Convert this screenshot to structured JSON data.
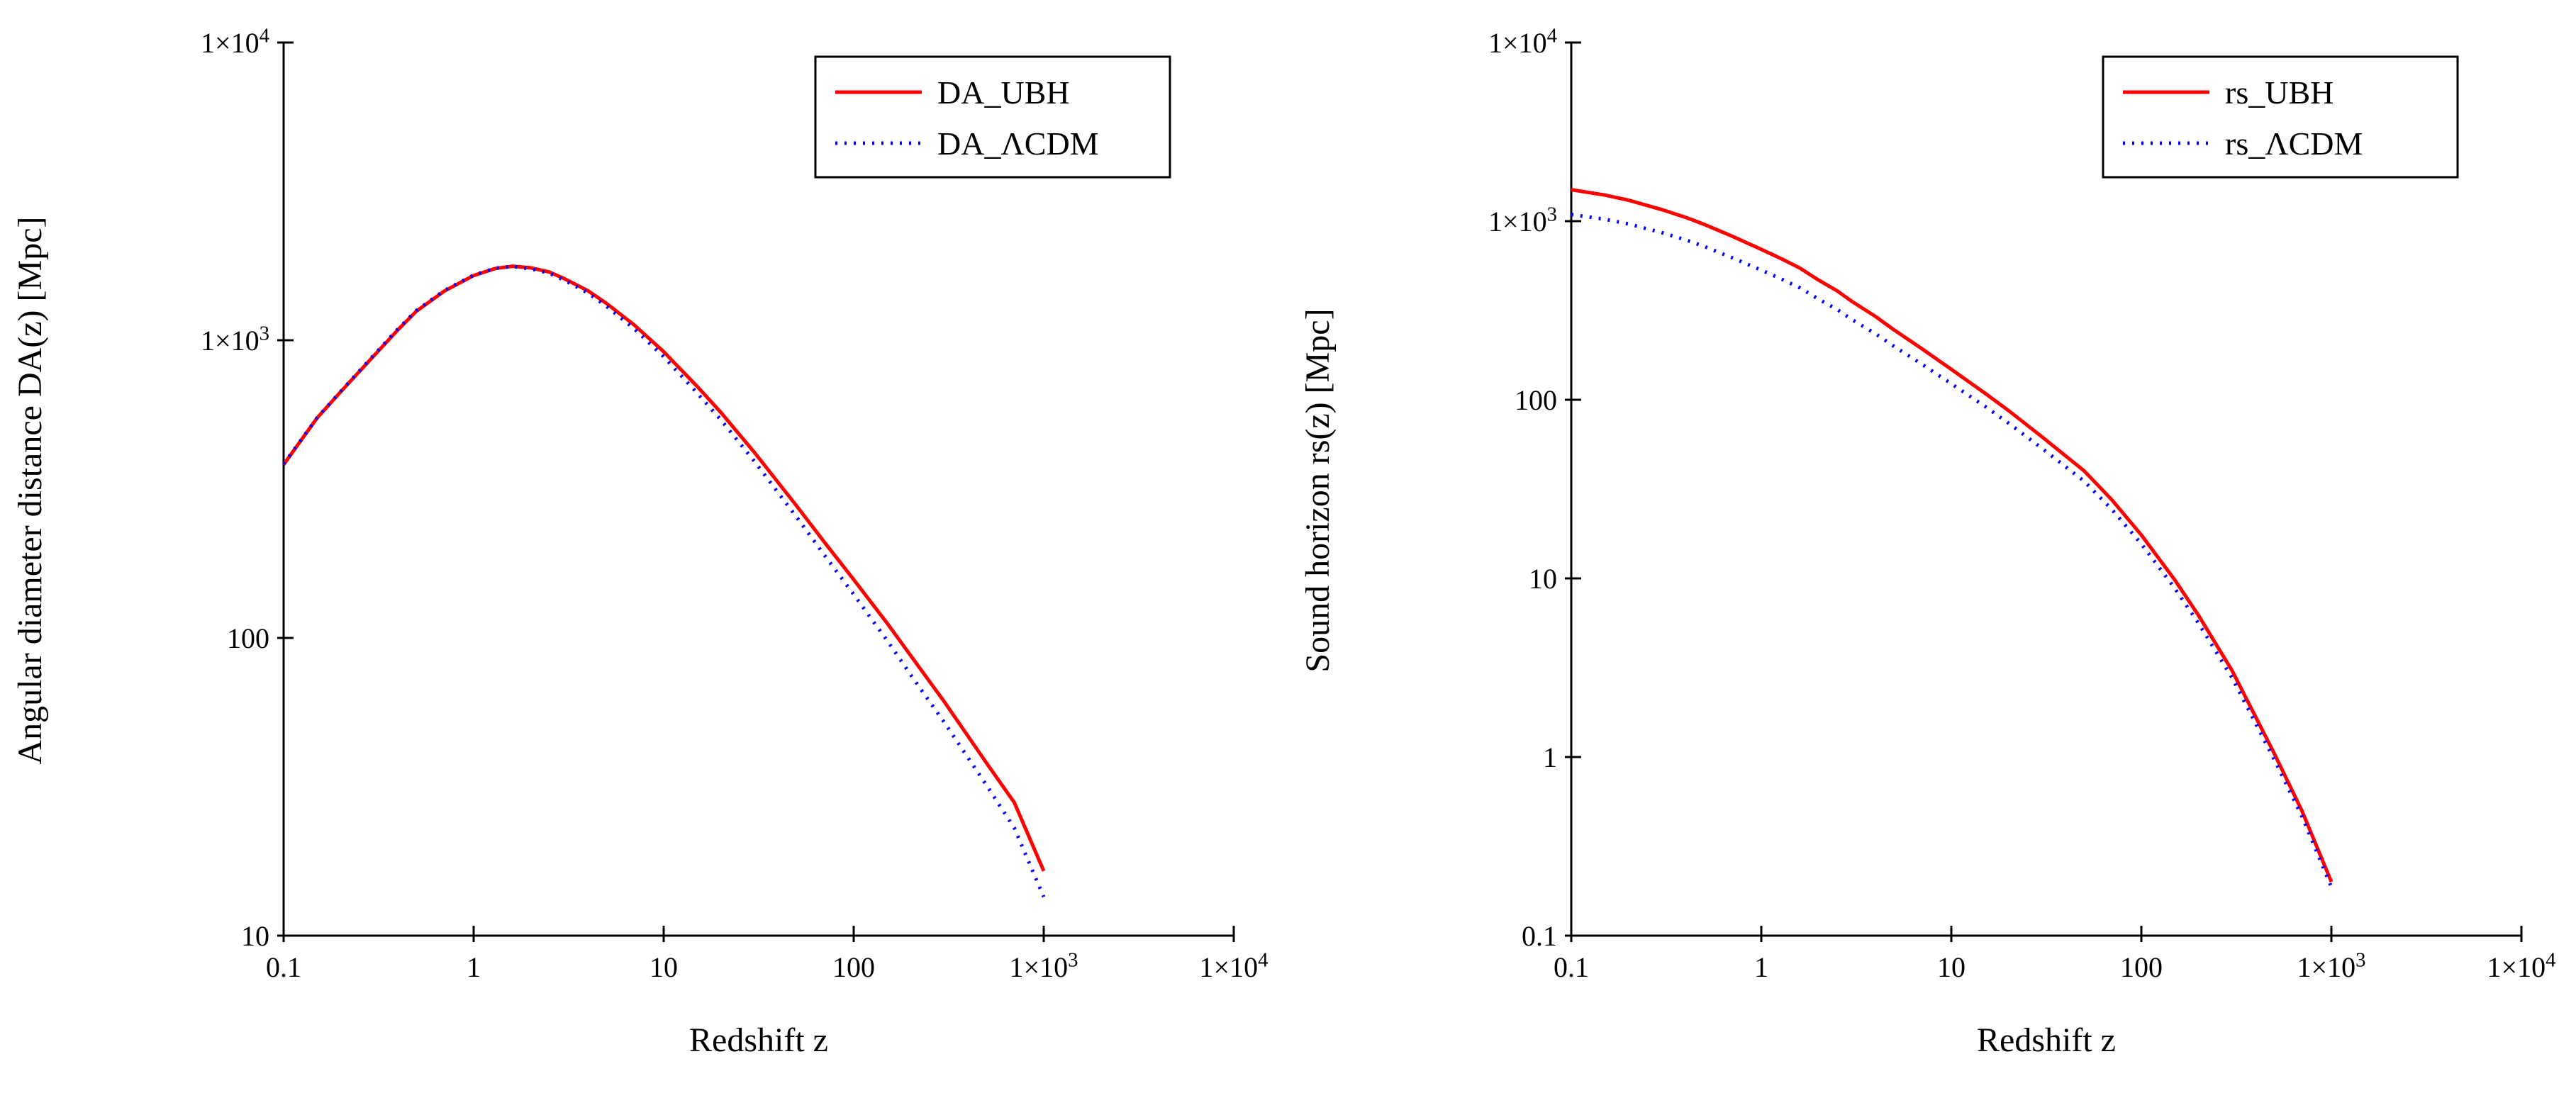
{
  "page": {
    "background": "#ffffff",
    "text_color": "#000000"
  },
  "chart_data": [
    {
      "type": "line",
      "title": "",
      "xlabel": "Redshift z",
      "ylabel": "Angular diameter distance DA(z) [Mpc]",
      "xscale": "log",
      "yscale": "log",
      "xlim": [
        0.1,
        10000
      ],
      "ylim": [
        10,
        10000
      ],
      "grid": false,
      "legend_position": "top-right-inside",
      "xticks": {
        "values": [
          0.1,
          1,
          10,
          100,
          1000,
          10000
        ],
        "labels": [
          "0.1",
          "1",
          "10",
          "100",
          "1×10^3",
          "1×10^4"
        ]
      },
      "yticks": {
        "values": [
          10,
          100,
          1000,
          10000
        ],
        "labels": [
          "10",
          "100",
          "1×10^3",
          "1×10^4"
        ]
      },
      "x": [
        0.1,
        0.15,
        0.2,
        0.3,
        0.4,
        0.5,
        0.7,
        1,
        1.3,
        1.6,
        2,
        2.5,
        3,
        4,
        5,
        7,
        10,
        15,
        20,
        30,
        50,
        70,
        100,
        150,
        200,
        300,
        500,
        700,
        1000
      ],
      "series": [
        {
          "name": "DA_UBH",
          "color": "#ff0000",
          "style": "solid",
          "y": [
            382,
            548,
            672,
            890,
            1085,
            1252,
            1462,
            1650,
            1742,
            1772,
            1750,
            1695,
            1610,
            1465,
            1330,
            1125,
            915,
            700,
            572,
            420,
            278,
            210,
            157,
            112,
            87,
            61,
            38,
            28,
            16.5
          ]
        },
        {
          "name": "DA_ΛCDM",
          "color": "#0000ff",
          "style": "dotted",
          "y": [
            384,
            549,
            674,
            895,
            1092,
            1258,
            1468,
            1655,
            1745,
            1770,
            1737,
            1680,
            1590,
            1440,
            1300,
            1093,
            880,
            665,
            540,
            392,
            255,
            190,
            140,
            98,
            75,
            52,
            32,
            23,
            13.5
          ]
        }
      ]
    },
    {
      "type": "line",
      "title": "",
      "xlabel": "Redshift z",
      "ylabel": "Sound horizon rs(z) [Mpc]",
      "xscale": "log",
      "yscale": "log",
      "xlim": [
        0.1,
        10000
      ],
      "ylim": [
        0.1,
        10000
      ],
      "grid": false,
      "legend_position": "top-right-inside",
      "xticks": {
        "values": [
          0.1,
          1,
          10,
          100,
          1000,
          10000
        ],
        "labels": [
          "0.1",
          "1",
          "10",
          "100",
          "1×10^3",
          "1×10^4"
        ]
      },
      "yticks": {
        "values": [
          0.1,
          1,
          10,
          100,
          1000,
          10000
        ],
        "labels": [
          "0.1",
          "1",
          "10",
          "100",
          "1×10^3",
          "1×10^4"
        ]
      },
      "x": [
        0.1,
        0.15,
        0.2,
        0.3,
        0.4,
        0.5,
        0.7,
        1,
        1.3,
        1.6,
        2,
        2.5,
        3,
        4,
        5,
        7,
        10,
        15,
        20,
        30,
        50,
        70,
        100,
        150,
        200,
        300,
        500,
        700,
        1000
      ],
      "series": [
        {
          "name": "rs_UBH",
          "color": "#ff0000",
          "style": "solid",
          "y": [
            1500,
            1400,
            1310,
            1160,
            1050,
            960,
            825,
            695,
            610,
            545,
            468,
            408,
            355,
            292,
            246,
            193,
            148,
            109,
            87,
            62,
            40,
            27.5,
            17.5,
            9.8,
            6.2,
            3.05,
            1.05,
            0.5,
            0.2
          ]
        },
        {
          "name": "rs_ΛCDM",
          "color": "#0000ff",
          "style": "dotted",
          "y": [
            1090,
            1025,
            965,
            862,
            786,
            722,
            625,
            532,
            470,
            423,
            366,
            321,
            281,
            234,
            199,
            158,
            123,
            92,
            74,
            53.5,
            35,
            24.3,
            15.6,
            8.8,
            5.6,
            2.78,
            0.97,
            0.465,
            0.187
          ]
        }
      ]
    }
  ]
}
